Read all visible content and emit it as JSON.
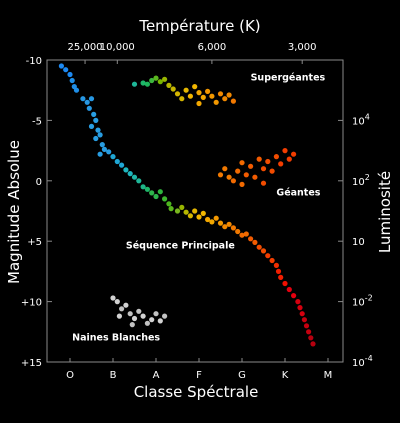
{
  "chart_data": {
    "type": "scatter",
    "title": "Température (K)",
    "xlabel": "Classe Spéctrale",
    "ylabel": "Magnitude Absolue",
    "y2label": "Luminosité",
    "x_categories": [
      "O",
      "B",
      "A",
      "F",
      "G",
      "K",
      "M"
    ],
    "top_ticks": [
      {
        "label": "25,000",
        "x": 0.35
      },
      {
        "label": "10,000",
        "x": 1.1
      },
      {
        "label": "6,000",
        "x": 3.3
      },
      {
        "label": "3,000",
        "x": 5.4
      }
    ],
    "ylim": [
      -10,
      15
    ],
    "y_inverted": true,
    "y_ticks": [
      {
        "label": "-10",
        "value": -10
      },
      {
        "label": "-5",
        "value": -5
      },
      {
        "label": "0",
        "value": 0
      },
      {
        "label": "+5",
        "value": 5
      },
      {
        "label": "+10",
        "value": 10
      },
      {
        "label": "+15",
        "value": 15
      }
    ],
    "y2_ticks": [
      {
        "base": "10",
        "exp": "4",
        "mag": -5
      },
      {
        "base": "10",
        "exp": "2",
        "mag": 0
      },
      {
        "base": "10",
        "exp": "",
        "mag": 5
      },
      {
        "base": "10",
        "exp": "-2",
        "mag": 10
      },
      {
        "base": "10",
        "exp": "-4",
        "mag": 15
      }
    ],
    "annotations": [
      {
        "text": "Supergéantes",
        "x": 4.2,
        "y": -8.3
      },
      {
        "text": "Géantes",
        "x": 4.8,
        "y": 1.2
      },
      {
        "text": "Séquence Principale",
        "x": 1.3,
        "y": 5.6
      },
      {
        "text": "Naines Blanches",
        "x": 0.05,
        "y": 13.2
      }
    ],
    "series": [
      {
        "cluster": "main-sequence",
        "points": [
          [
            -0.2,
            -9.5,
            "#1e90ff"
          ],
          [
            -0.1,
            -9.2,
            "#1e90ff"
          ],
          [
            0.0,
            -8.8,
            "#1e90ff"
          ],
          [
            0.05,
            -8.3,
            "#2196f3"
          ],
          [
            0.1,
            -7.8,
            "#2196f3"
          ],
          [
            0.15,
            -7.5,
            "#2196f3"
          ],
          [
            0.3,
            -6.8,
            "#29a0f0"
          ],
          [
            0.4,
            -6.5,
            "#29a0f0"
          ],
          [
            0.5,
            -6.8,
            "#29a0f0"
          ],
          [
            0.45,
            -6.0,
            "#29a0f0"
          ],
          [
            0.55,
            -5.5,
            "#2aa5ee"
          ],
          [
            0.6,
            -5.0,
            "#2aa5ee"
          ],
          [
            0.5,
            -4.5,
            "#2aa5ee"
          ],
          [
            0.65,
            -4.2,
            "#2aa5ee"
          ],
          [
            0.7,
            -3.8,
            "#2aa5ee"
          ],
          [
            0.6,
            -3.5,
            "#2aa5ee"
          ],
          [
            0.75,
            -3.0,
            "#2aa5ee"
          ],
          [
            0.8,
            -2.6,
            "#2aa5ee"
          ],
          [
            0.7,
            -2.2,
            "#2aa5ee"
          ],
          [
            0.9,
            -2.4,
            "#2aa5ee"
          ],
          [
            1.0,
            -2.0,
            "#21b0e0"
          ],
          [
            1.1,
            -1.6,
            "#21b0e0"
          ],
          [
            1.2,
            -1.3,
            "#21b0e0"
          ],
          [
            1.3,
            -0.9,
            "#20c0c8"
          ],
          [
            1.4,
            -0.6,
            "#20c0c8"
          ],
          [
            1.5,
            -0.3,
            "#20c0b0"
          ],
          [
            1.6,
            0.0,
            "#20c0a0"
          ],
          [
            1.7,
            0.5,
            "#20c090"
          ],
          [
            1.8,
            0.7,
            "#20c070"
          ],
          [
            1.9,
            1.0,
            "#30c050"
          ],
          [
            2.0,
            1.3,
            "#30c050"
          ],
          [
            2.1,
            0.9,
            "#30c040"
          ],
          [
            2.2,
            1.5,
            "#40c030"
          ],
          [
            2.3,
            1.9,
            "#50c020"
          ],
          [
            2.35,
            2.3,
            "#60c020"
          ],
          [
            2.5,
            2.5,
            "#80c020"
          ],
          [
            2.6,
            2.2,
            "#a0c000"
          ],
          [
            2.7,
            2.6,
            "#c0c000"
          ],
          [
            2.8,
            2.9,
            "#e0c000"
          ],
          [
            2.9,
            2.5,
            "#f0c000"
          ],
          [
            3.0,
            3.0,
            "#ffc000"
          ],
          [
            3.1,
            2.7,
            "#ffc000"
          ],
          [
            3.2,
            3.2,
            "#ffb000"
          ],
          [
            3.3,
            3.4,
            "#ffb000"
          ],
          [
            3.4,
            3.1,
            "#ffa000"
          ],
          [
            3.5,
            3.5,
            "#ffa000"
          ],
          [
            3.6,
            3.8,
            "#ff9000"
          ],
          [
            3.7,
            3.6,
            "#ff9000"
          ],
          [
            3.8,
            3.9,
            "#ff8000"
          ],
          [
            3.9,
            4.2,
            "#ff8000"
          ],
          [
            4.0,
            4.5,
            "#ff7000"
          ],
          [
            4.1,
            4.4,
            "#ff7000"
          ],
          [
            4.2,
            4.8,
            "#ff6000"
          ],
          [
            4.3,
            5.1,
            "#ff6000"
          ],
          [
            4.4,
            5.5,
            "#ff5000"
          ],
          [
            4.5,
            5.8,
            "#ff5000"
          ],
          [
            4.6,
            6.2,
            "#ff4000"
          ],
          [
            4.7,
            6.6,
            "#ff4000"
          ],
          [
            4.8,
            7.0,
            "#ff3000"
          ],
          [
            4.85,
            7.5,
            "#ff2000"
          ],
          [
            4.9,
            8.0,
            "#ff2000"
          ],
          [
            5.0,
            8.5,
            "#ff1000"
          ],
          [
            5.1,
            9.0,
            "#f00010"
          ],
          [
            5.2,
            9.5,
            "#f00010"
          ],
          [
            5.3,
            10.0,
            "#e00010"
          ],
          [
            5.35,
            10.5,
            "#e00010"
          ],
          [
            5.4,
            11.0,
            "#e00010"
          ],
          [
            5.45,
            11.5,
            "#d00010"
          ],
          [
            5.5,
            12.0,
            "#d00010"
          ],
          [
            5.55,
            12.5,
            "#d00010"
          ],
          [
            5.6,
            13.0,
            "#c00010"
          ],
          [
            5.65,
            13.5,
            "#c00010"
          ]
        ]
      },
      {
        "cluster": "supergiants",
        "points": [
          [
            1.5,
            -8.0,
            "#20c0a0"
          ],
          [
            1.7,
            -8.1,
            "#20c070"
          ],
          [
            1.8,
            -8.0,
            "#20c060"
          ],
          [
            1.9,
            -8.3,
            "#40c040"
          ],
          [
            2.0,
            -8.5,
            "#60c020"
          ],
          [
            2.1,
            -8.2,
            "#80c000"
          ],
          [
            2.2,
            -8.4,
            "#a0c000"
          ],
          [
            2.3,
            -7.9,
            "#c0c000"
          ],
          [
            2.4,
            -7.6,
            "#d0c000"
          ],
          [
            2.5,
            -7.2,
            "#e0c000"
          ],
          [
            2.7,
            -7.5,
            "#f0c000"
          ],
          [
            2.8,
            -7.0,
            "#ffc000"
          ],
          [
            2.9,
            -7.8,
            "#ffc000"
          ],
          [
            3.0,
            -7.3,
            "#ffb000"
          ],
          [
            3.1,
            -6.9,
            "#ffb000"
          ],
          [
            3.2,
            -7.4,
            "#ffa000"
          ],
          [
            3.3,
            -7.0,
            "#ffa000"
          ],
          [
            3.4,
            -6.5,
            "#ffa000"
          ],
          [
            3.5,
            -7.2,
            "#ff9000"
          ],
          [
            3.6,
            -6.8,
            "#ff9000"
          ],
          [
            3.7,
            -7.1,
            "#ff9000"
          ],
          [
            3.8,
            -6.6,
            "#ff8000"
          ],
          [
            2.6,
            -6.8,
            "#e0c000"
          ],
          [
            3.0,
            -6.4,
            "#ffb000"
          ]
        ]
      },
      {
        "cluster": "giants",
        "points": [
          [
            3.5,
            -0.5,
            "#ff8000"
          ],
          [
            3.6,
            -1.0,
            "#ff8000"
          ],
          [
            3.7,
            -0.3,
            "#ff8000"
          ],
          [
            3.8,
            0.0,
            "#ff7000"
          ],
          [
            3.9,
            -0.8,
            "#ff7000"
          ],
          [
            4.0,
            -1.5,
            "#ff7000"
          ],
          [
            4.1,
            -0.5,
            "#ff6000"
          ],
          [
            4.2,
            -1.2,
            "#ff6000"
          ],
          [
            4.3,
            -0.3,
            "#ff6000"
          ],
          [
            4.4,
            -1.8,
            "#ff6000"
          ],
          [
            4.5,
            -1.0,
            "#ff5000"
          ],
          [
            4.6,
            -1.6,
            "#ff5000"
          ],
          [
            4.7,
            -0.8,
            "#ff5000"
          ],
          [
            4.8,
            -2.0,
            "#ff5000"
          ],
          [
            4.9,
            -1.4,
            "#ff4000"
          ],
          [
            5.0,
            -2.5,
            "#ff4000"
          ],
          [
            5.1,
            -1.8,
            "#ff4000"
          ],
          [
            5.2,
            -2.2,
            "#ff4000"
          ],
          [
            4.5,
            0.2,
            "#ff5000"
          ],
          [
            4.0,
            0.3,
            "#ff7000"
          ]
        ]
      },
      {
        "cluster": "white-dwarfs",
        "points": [
          [
            1.0,
            9.7,
            "#dddddd"
          ],
          [
            1.1,
            10.0,
            "#dddddd"
          ],
          [
            1.2,
            10.6,
            "#cccccc"
          ],
          [
            1.3,
            10.3,
            "#dddddd"
          ],
          [
            1.4,
            11.0,
            "#cccccc"
          ],
          [
            1.5,
            11.4,
            "#dddddd"
          ],
          [
            1.6,
            10.8,
            "#cccccc"
          ],
          [
            1.7,
            11.2,
            "#dddddd"
          ],
          [
            1.8,
            11.8,
            "#cccccc"
          ],
          [
            1.9,
            11.5,
            "#dddddd"
          ],
          [
            2.0,
            11.0,
            "#cccccc"
          ],
          [
            2.1,
            11.6,
            "#dddddd"
          ],
          [
            2.2,
            11.2,
            "#cccccc"
          ],
          [
            1.15,
            11.2,
            "#dddddd"
          ],
          [
            1.45,
            11.9,
            "#cccccc"
          ]
        ]
      }
    ]
  }
}
